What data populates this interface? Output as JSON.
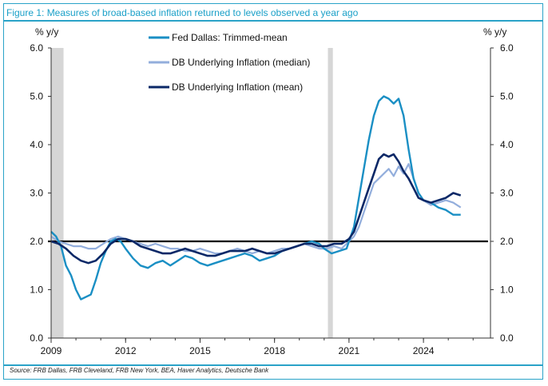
{
  "figure": {
    "title": "Figure 1: Measures of broad-based inflation returned to levels observed a year ago",
    "source": "Source: FRB Dallas, FRB Cleveland, FRB New York, BEA, Haver Analytics, Deutsche Bank"
  },
  "chart_data": {
    "type": "line",
    "ylabel_left": "% y/y",
    "ylabel_right": "% y/y",
    "ylim": [
      0.0,
      6.0
    ],
    "xlim": [
      2009.0,
      2026.7
    ],
    "x_ticks": [
      "2009",
      "2012",
      "2015",
      "2018",
      "2021",
      "2024"
    ],
    "x_tick_values": [
      2009,
      2012,
      2015,
      2018,
      2021,
      2024
    ],
    "y_ticks": [
      "0.0",
      "1.0",
      "2.0",
      "3.0",
      "4.0",
      "5.0",
      "6.0"
    ],
    "y_tick_values": [
      0,
      1,
      2,
      3,
      4,
      5,
      6
    ],
    "legend_position": "top-left",
    "reference_line": 2.0,
    "recessions": [
      [
        2009.0,
        2009.5
      ],
      [
        2020.15,
        2020.35
      ]
    ],
    "colors": {
      "trimmed": "#1a8fc4",
      "median": "#93aedc",
      "mean": "#0b2867",
      "ref": "#000000",
      "shade": "#d6d6d6"
    },
    "series": [
      {
        "name": "Fed Dallas: Trimmed-mean",
        "x": [
          2009.0,
          2009.2,
          2009.4,
          2009.6,
          2009.8,
          2010.0,
          2010.2,
          2010.4,
          2010.6,
          2010.8,
          2011.0,
          2011.2,
          2011.4,
          2011.6,
          2011.8,
          2012.0,
          2012.3,
          2012.6,
          2012.9,
          2013.2,
          2013.5,
          2013.8,
          2014.1,
          2014.4,
          2014.7,
          2015.0,
          2015.3,
          2015.6,
          2015.9,
          2016.2,
          2016.5,
          2016.8,
          2017.1,
          2017.4,
          2017.7,
          2018.0,
          2018.3,
          2018.6,
          2018.9,
          2019.2,
          2019.5,
          2019.8,
          2020.0,
          2020.3,
          2020.6,
          2020.9,
          2021.2,
          2021.4,
          2021.6,
          2021.8,
          2022.0,
          2022.2,
          2022.4,
          2022.6,
          2022.8,
          2023.0,
          2023.2,
          2023.4,
          2023.6,
          2023.8,
          2024.0,
          2024.3,
          2024.6,
          2024.9,
          2025.2,
          2025.5
        ],
        "values": [
          2.2,
          2.1,
          1.9,
          1.5,
          1.3,
          1.0,
          0.8,
          0.85,
          0.9,
          1.2,
          1.55,
          1.8,
          2.0,
          2.05,
          2.0,
          1.85,
          1.65,
          1.5,
          1.45,
          1.55,
          1.6,
          1.5,
          1.6,
          1.7,
          1.65,
          1.55,
          1.5,
          1.55,
          1.6,
          1.65,
          1.7,
          1.75,
          1.7,
          1.6,
          1.65,
          1.7,
          1.8,
          1.85,
          1.9,
          1.95,
          2.0,
          1.95,
          1.85,
          1.75,
          1.8,
          1.85,
          2.3,
          2.9,
          3.5,
          4.1,
          4.6,
          4.9,
          5.0,
          4.95,
          4.85,
          4.95,
          4.6,
          3.9,
          3.3,
          3.0,
          2.85,
          2.8,
          2.7,
          2.65,
          2.55,
          2.55
        ]
      },
      {
        "name": "DB Underlying Inflation (median)",
        "x": [
          2009.0,
          2009.3,
          2009.6,
          2009.9,
          2010.2,
          2010.5,
          2010.8,
          2011.1,
          2011.4,
          2011.7,
          2012.0,
          2012.3,
          2012.6,
          2012.9,
          2013.2,
          2013.5,
          2013.8,
          2014.1,
          2014.4,
          2014.7,
          2015.0,
          2015.3,
          2015.6,
          2015.9,
          2016.2,
          2016.5,
          2016.8,
          2017.1,
          2017.4,
          2017.7,
          2018.0,
          2018.3,
          2018.6,
          2018.9,
          2019.2,
          2019.5,
          2019.8,
          2020.1,
          2020.4,
          2020.7,
          2021.0,
          2021.2,
          2021.4,
          2021.6,
          2021.8,
          2022.0,
          2022.2,
          2022.4,
          2022.6,
          2022.8,
          2023.0,
          2023.2,
          2023.4,
          2023.6,
          2023.8,
          2024.0,
          2024.3,
          2024.6,
          2024.9,
          2025.2,
          2025.5
        ],
        "values": [
          2.1,
          2.0,
          1.95,
          1.9,
          1.9,
          1.85,
          1.85,
          1.95,
          2.05,
          2.1,
          2.05,
          2.0,
          1.95,
          1.9,
          1.95,
          1.9,
          1.85,
          1.85,
          1.8,
          1.8,
          1.85,
          1.8,
          1.75,
          1.75,
          1.8,
          1.85,
          1.8,
          1.75,
          1.8,
          1.75,
          1.8,
          1.85,
          1.85,
          1.9,
          1.95,
          1.9,
          1.85,
          1.85,
          1.9,
          1.85,
          2.0,
          2.1,
          2.3,
          2.6,
          2.9,
          3.2,
          3.3,
          3.4,
          3.5,
          3.35,
          3.55,
          3.4,
          3.6,
          3.3,
          3.0,
          2.85,
          2.75,
          2.8,
          2.85,
          2.8,
          2.7
        ]
      },
      {
        "name": "DB Underlying Inflation (mean)",
        "x": [
          2009.0,
          2009.3,
          2009.6,
          2009.9,
          2010.2,
          2010.5,
          2010.8,
          2011.1,
          2011.4,
          2011.7,
          2012.0,
          2012.3,
          2012.6,
          2012.9,
          2013.2,
          2013.5,
          2013.8,
          2014.1,
          2014.4,
          2014.7,
          2015.0,
          2015.3,
          2015.6,
          2015.9,
          2016.2,
          2016.5,
          2016.8,
          2017.1,
          2017.4,
          2017.7,
          2018.0,
          2018.3,
          2018.6,
          2018.9,
          2019.2,
          2019.5,
          2019.8,
          2020.1,
          2020.4,
          2020.7,
          2021.0,
          2021.2,
          2021.4,
          2021.6,
          2021.8,
          2022.0,
          2022.2,
          2022.4,
          2022.6,
          2022.8,
          2023.0,
          2023.2,
          2023.4,
          2023.6,
          2023.8,
          2024.0,
          2024.3,
          2024.6,
          2024.9,
          2025.2,
          2025.5
        ],
        "values": [
          2.0,
          1.95,
          1.85,
          1.7,
          1.6,
          1.55,
          1.6,
          1.75,
          1.95,
          2.05,
          2.05,
          2.0,
          1.9,
          1.85,
          1.8,
          1.75,
          1.75,
          1.8,
          1.85,
          1.8,
          1.75,
          1.7,
          1.7,
          1.75,
          1.8,
          1.8,
          1.8,
          1.85,
          1.8,
          1.75,
          1.75,
          1.8,
          1.85,
          1.9,
          1.95,
          1.95,
          1.9,
          1.9,
          1.95,
          1.95,
          2.05,
          2.2,
          2.5,
          2.8,
          3.1,
          3.4,
          3.7,
          3.8,
          3.75,
          3.8,
          3.65,
          3.45,
          3.3,
          3.1,
          2.9,
          2.85,
          2.8,
          2.85,
          2.9,
          3.0,
          2.95
        ]
      }
    ]
  }
}
